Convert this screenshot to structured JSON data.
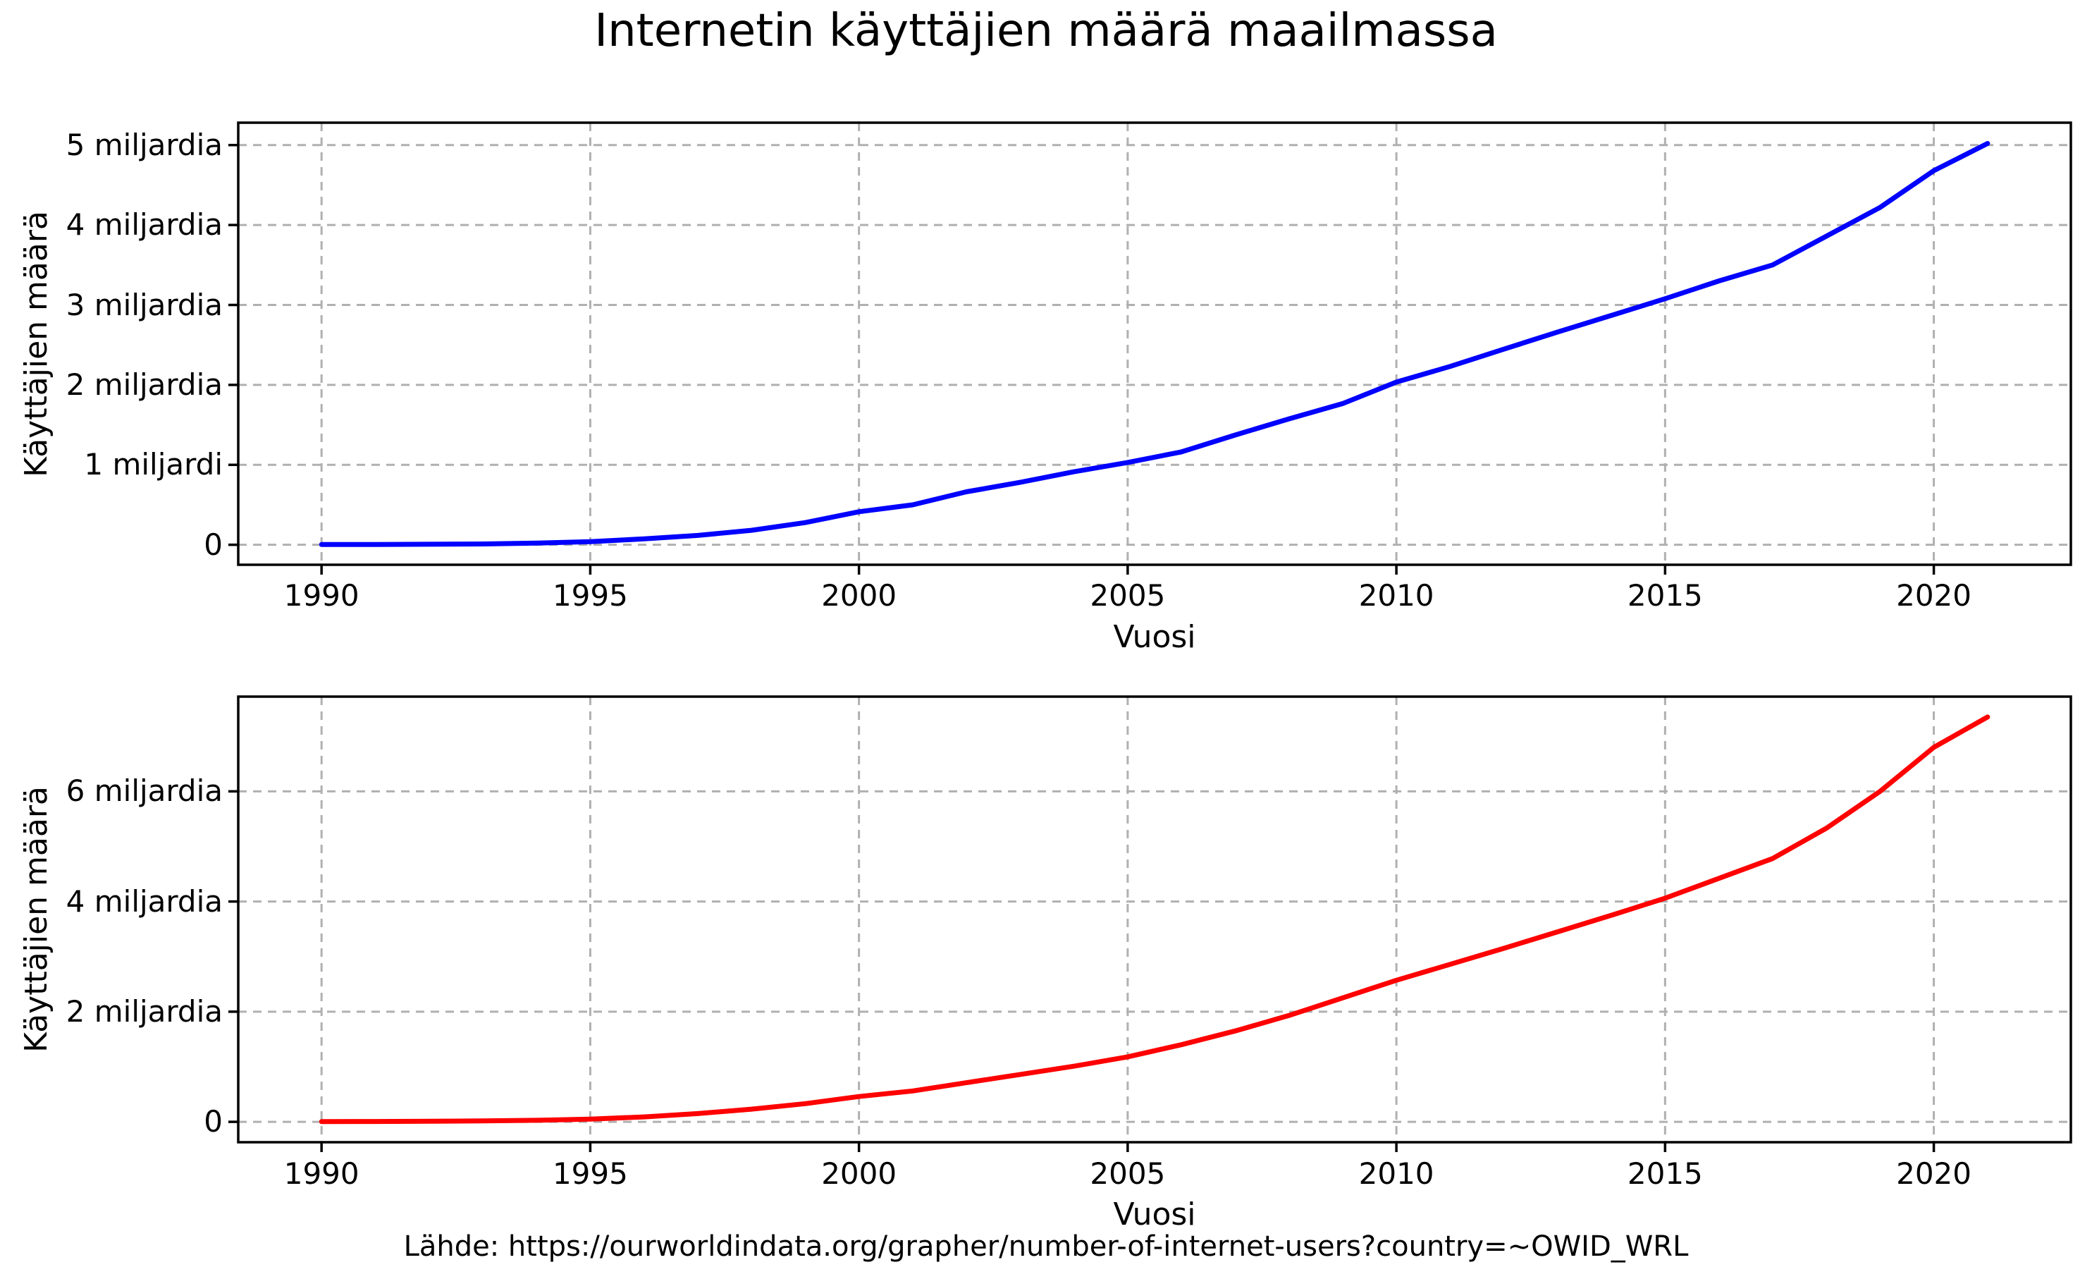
{
  "title": "Internetin käyttäjien määrä maailmassa",
  "footer": "Lähde: https://ourworldindata.org/grapher/number-of-internet-users?country=~OWID_WRL",
  "colors": {
    "grid": "#b0b0b0",
    "axes": "#000000",
    "text": "#000000",
    "background": "#ffffff",
    "top_line": "#0000ff",
    "bottom_line": "#ff0000"
  },
  "chart_data": [
    {
      "type": "line",
      "xlabel": "Vuosi",
      "ylabel": "Käyttäjien määrä",
      "color": "#0000ff",
      "grid": true,
      "legend": false,
      "x": [
        1990,
        1991,
        1992,
        1993,
        1994,
        1995,
        1996,
        1997,
        1998,
        1999,
        2000,
        2001,
        2002,
        2003,
        2004,
        2005,
        2006,
        2007,
        2008,
        2009,
        2010,
        2011,
        2012,
        2013,
        2014,
        2015,
        2016,
        2017,
        2018,
        2019,
        2020,
        2021
      ],
      "y": [
        0.003,
        0.004,
        0.007,
        0.01,
        0.021,
        0.039,
        0.074,
        0.117,
        0.181,
        0.277,
        0.413,
        0.5,
        0.663,
        0.781,
        0.913,
        1.03,
        1.162,
        1.373,
        1.575,
        1.766,
        2.035,
        2.231,
        2.447,
        2.661,
        2.869,
        3.078,
        3.3,
        3.5,
        3.86,
        4.22,
        4.68,
        5.02
      ],
      "xticks": [
        1990,
        1995,
        2000,
        2005,
        2010,
        2015,
        2020
      ],
      "yticks": [
        0,
        1,
        2,
        3,
        4,
        5
      ],
      "ytick_labels": [
        "0",
        "1 miljardi",
        "2 miljardia",
        "3 miljardia",
        "4 miljardia",
        "5 miljardia"
      ],
      "xlim": [
        1988.45,
        2022.55
      ],
      "ylim": [
        -0.25,
        5.28
      ]
    },
    {
      "type": "line",
      "xlabel": "Vuosi",
      "ylabel": "Käyttäjien määrä",
      "color": "#ff0000",
      "grid": true,
      "legend": false,
      "x": [
        1990,
        1991,
        1992,
        1993,
        1994,
        1995,
        1996,
        1997,
        1998,
        1999,
        2000,
        2001,
        2002,
        2003,
        2004,
        2005,
        2006,
        2007,
        2008,
        2009,
        2010,
        2011,
        2012,
        2013,
        2014,
        2015,
        2016,
        2017,
        2018,
        2019,
        2020,
        2021
      ],
      "y": [
        0.004,
        0.006,
        0.01,
        0.016,
        0.028,
        0.05,
        0.09,
        0.15,
        0.23,
        0.33,
        0.46,
        0.56,
        0.71,
        0.86,
        1.01,
        1.18,
        1.4,
        1.65,
        1.93,
        2.25,
        2.57,
        2.86,
        3.15,
        3.45,
        3.75,
        4.06,
        4.42,
        4.78,
        5.33,
        6.0,
        6.8,
        7.35
      ],
      "xticks": [
        1990,
        1995,
        2000,
        2005,
        2010,
        2015,
        2020
      ],
      "yticks": [
        0,
        2,
        4,
        6
      ],
      "ytick_labels": [
        "0",
        "2 miljardia",
        "4 miljardia",
        "6 miljardia"
      ],
      "xlim": [
        1988.45,
        2022.55
      ],
      "ylim": [
        -0.37,
        7.72
      ]
    }
  ]
}
